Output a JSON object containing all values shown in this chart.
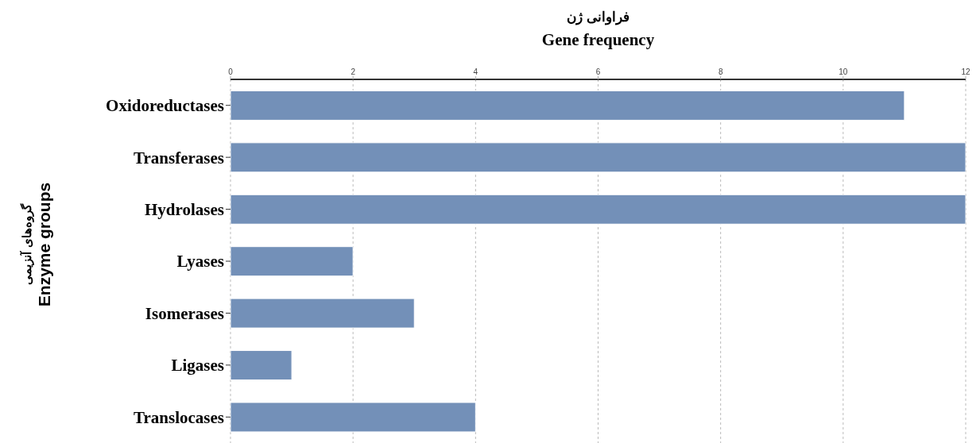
{
  "chart_data": {
    "type": "bar",
    "orientation": "horizontal",
    "xlabel": "فراوانی ژن\nGene frequency",
    "ylabel": "گروه‌های آنزیمی\nEnzyme groups",
    "categories": [
      "Oxidoreductases",
      "Transferases",
      "Hydrolases",
      "Lyases",
      "Isomerases",
      "Ligases",
      "Translocases"
    ],
    "values": [
      11,
      12,
      12,
      2,
      3,
      1,
      4
    ],
    "color": "#7390b8",
    "xlim": [
      0,
      12
    ],
    "xticks": [
      0,
      2,
      4,
      6,
      8,
      10,
      12
    ],
    "grid": "x"
  }
}
